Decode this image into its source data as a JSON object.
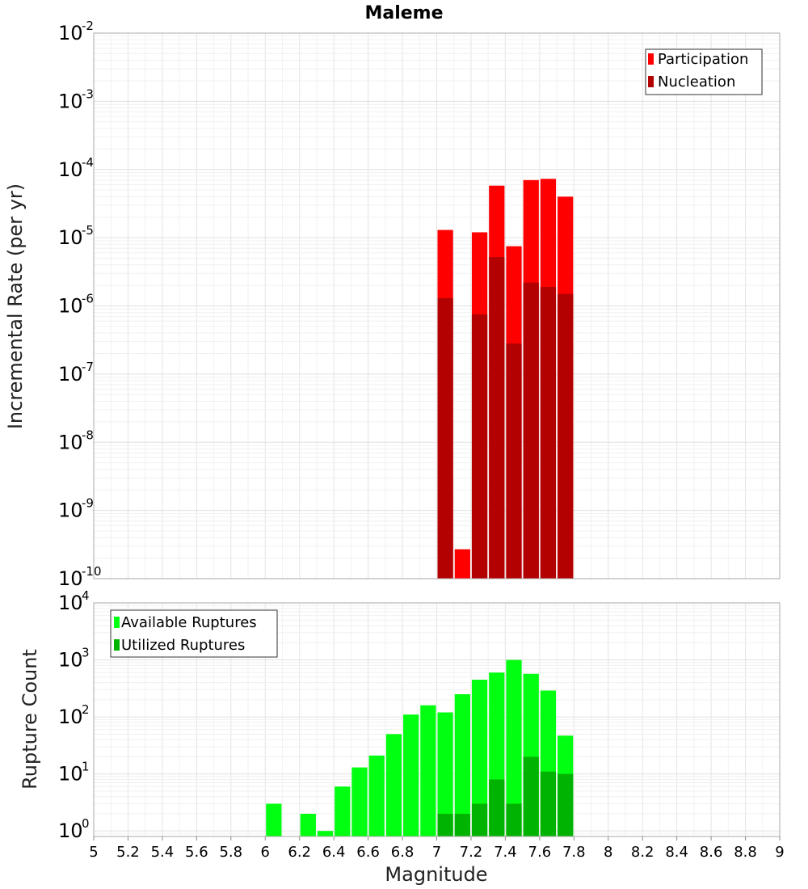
{
  "title": "Maleme",
  "xlabel": "Magnitude",
  "chart_data": [
    {
      "type": "bar",
      "ylabel": "Incremental Rate (per yr)",
      "yscale": "log",
      "ylim": [
        1e-10,
        0.01
      ],
      "xlim": [
        5,
        9
      ],
      "yticks": [
        {
          "base": "10",
          "exp": "-10"
        },
        {
          "base": "10",
          "exp": "-9"
        },
        {
          "base": "10",
          "exp": "-8"
        },
        {
          "base": "10",
          "exp": "-7"
        },
        {
          "base": "10",
          "exp": "-6"
        },
        {
          "base": "10",
          "exp": "-5"
        },
        {
          "base": "10",
          "exp": "-4"
        },
        {
          "base": "10",
          "exp": "-3"
        },
        {
          "base": "10",
          "exp": "-2"
        }
      ],
      "grid": true,
      "legend": {
        "placement": "top-right"
      },
      "bins": [
        7.05,
        7.15,
        7.25,
        7.35,
        7.45,
        7.55,
        7.65,
        7.75
      ],
      "series": [
        {
          "name": "Participation",
          "color": "#ff0000",
          "values": [
            1.3e-05,
            2.7e-10,
            1.2e-05,
            5.8e-05,
            7.5e-06,
            7e-05,
            7.3e-05,
            4e-05
          ]
        },
        {
          "name": "Nucleation",
          "color": "#b30000",
          "values": [
            1.3e-06,
            null,
            7.5e-07,
            5.2e-06,
            2.8e-07,
            2.2e-06,
            1.9e-06,
            1.5e-06
          ]
        }
      ]
    },
    {
      "type": "bar",
      "ylabel": "Rupture Count",
      "yscale": "log",
      "ylim": [
        0.8,
        10000
      ],
      "xlim": [
        5,
        9
      ],
      "yticks": [
        {
          "base": "10",
          "exp": "0"
        },
        {
          "base": "10",
          "exp": "1"
        },
        {
          "base": "10",
          "exp": "2"
        },
        {
          "base": "10",
          "exp": "3"
        },
        {
          "base": "10",
          "exp": "4"
        }
      ],
      "xticks": [
        "5",
        "5.2",
        "5.4",
        "5.6",
        "5.8",
        "6",
        "6.2",
        "6.4",
        "6.6",
        "6.8",
        "7",
        "7.2",
        "7.4",
        "7.6",
        "7.8",
        "8",
        "8.2",
        "8.4",
        "8.6",
        "8.8",
        "9"
      ],
      "grid": true,
      "legend": {
        "placement": "top-left"
      },
      "bins": [
        6.05,
        6.15,
        6.25,
        6.35,
        6.45,
        6.55,
        6.65,
        6.75,
        6.85,
        6.95,
        7.05,
        7.15,
        7.25,
        7.35,
        7.45,
        7.55,
        7.65,
        7.75
      ],
      "series": [
        {
          "name": "Available Ruptures",
          "color": "#00ff10",
          "values": [
            3,
            null,
            2,
            1,
            6,
            13,
            21,
            50,
            110,
            160,
            120,
            250,
            450,
            600,
            1000,
            570,
            290,
            47
          ]
        },
        {
          "name": "Utilized Ruptures",
          "color": "#00b300",
          "values": [
            null,
            null,
            null,
            null,
            null,
            null,
            null,
            null,
            null,
            null,
            2,
            2,
            3,
            8,
            3,
            20,
            11,
            10
          ]
        }
      ]
    }
  ]
}
